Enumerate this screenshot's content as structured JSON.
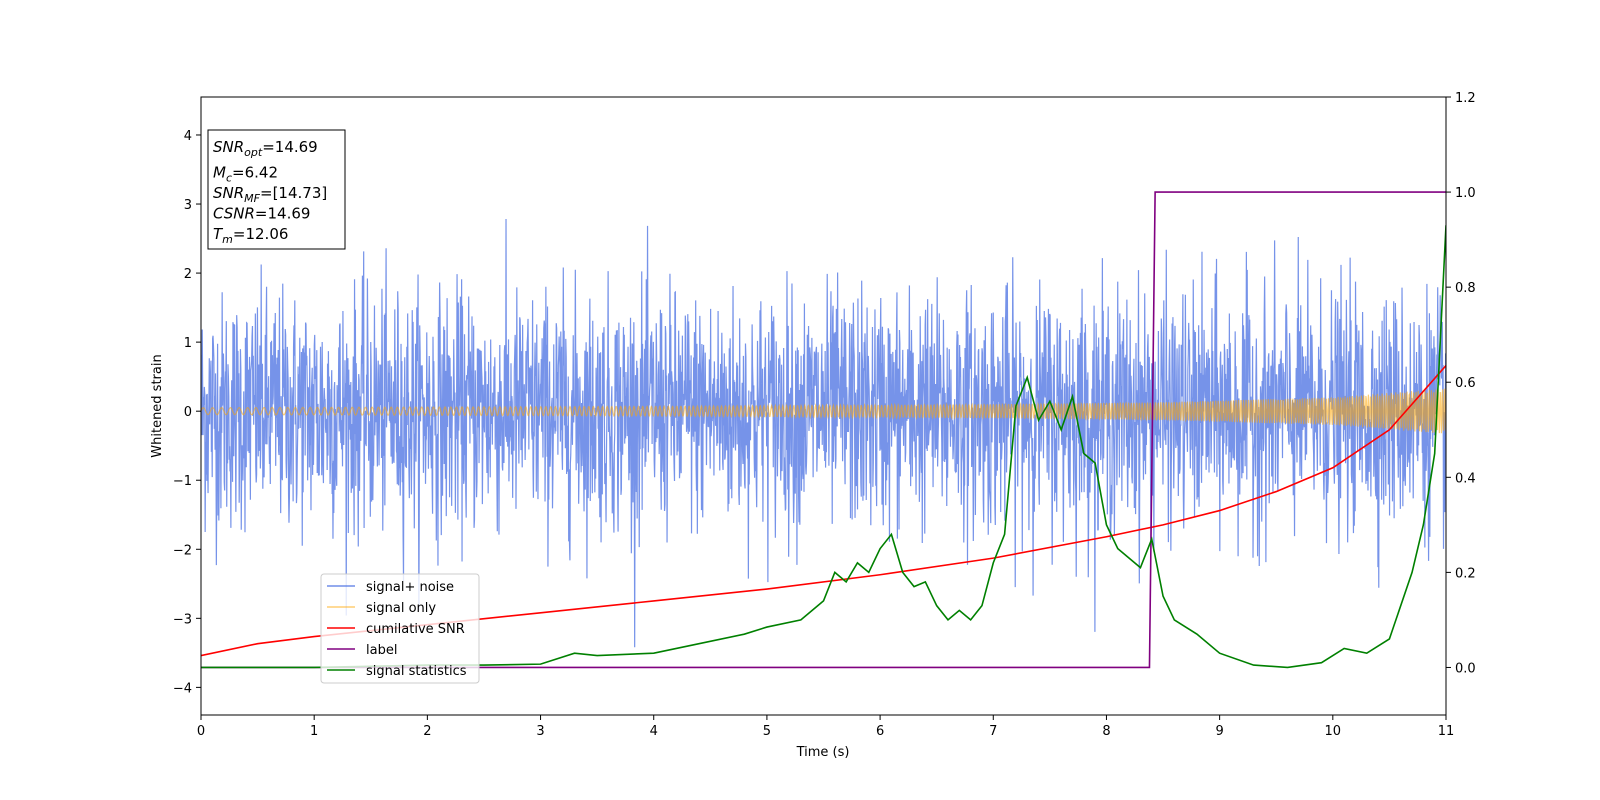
{
  "chart_data": {
    "type": "line",
    "xlabel": "Time (s)",
    "ylabel": "Whitened strain",
    "xlim": [
      0,
      11
    ],
    "ylim": [
      -4.4,
      4.55
    ],
    "y2lim": [
      -0.1,
      1.2
    ],
    "x_ticks": [
      0,
      1,
      2,
      3,
      4,
      5,
      6,
      7,
      8,
      9,
      10,
      11
    ],
    "y_ticks": [
      -4,
      -3,
      -2,
      -1,
      0,
      1,
      2,
      3,
      4
    ],
    "y2_ticks": [
      0.0,
      0.2,
      0.4,
      0.6,
      0.8,
      1.0,
      1.2
    ],
    "legend_position": "lower-left",
    "annotation": [
      {
        "base": "SNR",
        "sub": "opt",
        "value": "=14.69"
      },
      {
        "base": "M",
        "sub": "c",
        "value": "=6.42"
      },
      {
        "base": "SNR",
        "sub": "MF",
        "value": "=[14.73]"
      },
      {
        "base": "CSNR",
        "sub": "",
        "value": "=14.69"
      },
      {
        "base": "T",
        "sub": "m",
        "value": "=12.06"
      }
    ],
    "series": [
      {
        "name": "signal+ noise",
        "color": "#4169e1",
        "axis": "left",
        "kind": "noise",
        "sigma": 0.85,
        "y_range": [
          -3.95,
          3.6
        ]
      },
      {
        "name": "signal only",
        "color": "#ffa500",
        "axis": "left",
        "kind": "chirp",
        "amplitude_envelope": {
          "x": [
            0,
            4,
            7,
            8.5,
            10,
            11
          ],
          "y": [
            0.05,
            0.07,
            0.1,
            0.13,
            0.2,
            0.33
          ]
        }
      },
      {
        "name": "cumilative SNR",
        "color": "#ff0000",
        "axis": "right",
        "x": [
          0,
          0.5,
          1,
          2,
          3,
          4,
          5,
          6,
          7,
          8,
          8.5,
          9,
          9.5,
          10,
          10.5,
          11
        ],
        "y": [
          0.025,
          0.05,
          0.065,
          0.09,
          0.115,
          0.14,
          0.165,
          0.195,
          0.23,
          0.275,
          0.3,
          0.33,
          0.37,
          0.42,
          0.5,
          0.635
        ]
      },
      {
        "name": "label",
        "color": "#800080",
        "axis": "right",
        "x": [
          0,
          8.38,
          8.43,
          11
        ],
        "y": [
          0.0,
          0.0,
          1.0,
          1.0
        ]
      },
      {
        "name": "signal statistics",
        "color": "#008000",
        "axis": "right",
        "x": [
          0,
          1,
          2,
          2.5,
          3,
          3.3,
          3.5,
          4,
          4.3,
          4.8,
          5,
          5.3,
          5.5,
          5.6,
          5.7,
          5.8,
          5.9,
          6.0,
          6.1,
          6.2,
          6.3,
          6.4,
          6.5,
          6.6,
          6.7,
          6.8,
          6.9,
          7.0,
          7.1,
          7.2,
          7.25,
          7.3,
          7.4,
          7.5,
          7.6,
          7.7,
          7.8,
          7.9,
          8.0,
          8.1,
          8.2,
          8.3,
          8.4,
          8.5,
          8.6,
          8.8,
          9.0,
          9.3,
          9.6,
          9.9,
          10.1,
          10.3,
          10.5,
          10.7,
          10.8,
          10.9,
          11.0
        ],
        "y": [
          0.0,
          0.0,
          0.005,
          0.005,
          0.007,
          0.03,
          0.025,
          0.03,
          0.045,
          0.07,
          0.085,
          0.1,
          0.14,
          0.2,
          0.18,
          0.22,
          0.2,
          0.25,
          0.28,
          0.2,
          0.17,
          0.18,
          0.13,
          0.1,
          0.12,
          0.1,
          0.13,
          0.22,
          0.28,
          0.55,
          0.58,
          0.61,
          0.52,
          0.56,
          0.5,
          0.57,
          0.45,
          0.43,
          0.3,
          0.25,
          0.23,
          0.21,
          0.27,
          0.15,
          0.1,
          0.07,
          0.03,
          0.005,
          0.0,
          0.01,
          0.04,
          0.03,
          0.06,
          0.2,
          0.3,
          0.45,
          0.93
        ]
      }
    ]
  }
}
